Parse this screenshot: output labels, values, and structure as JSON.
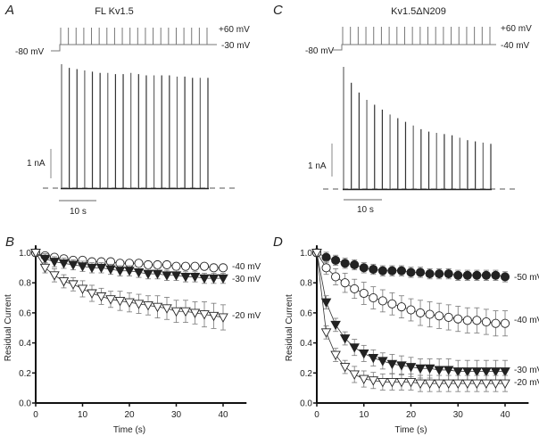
{
  "panels": {
    "A": {
      "letter": "A",
      "title": "FL Kv1.5",
      "v_hold": "-80 mV",
      "v_pulse": "+60 mV",
      "v_inter": "-30 mV",
      "scale_current": "1 nA",
      "scale_time": "10 s",
      "peak_amplitudes_rel": [
        1.0,
        0.97,
        0.96,
        0.95,
        0.94,
        0.93,
        0.93,
        0.92,
        0.92,
        0.93,
        0.92,
        0.91,
        0.91,
        0.91,
        0.91,
        0.9,
        0.9,
        0.89,
        0.89,
        0.89
      ]
    },
    "C": {
      "letter": "C",
      "title": "Kv1.5ΔN209",
      "v_hold": "-80 mV",
      "v_pulse": "+60 mV",
      "v_inter": "-40 mV",
      "scale_current": "1 nA",
      "scale_time": "10 s",
      "peak_amplitudes_rel": [
        1.0,
        0.87,
        0.79,
        0.73,
        0.69,
        0.65,
        0.61,
        0.58,
        0.55,
        0.52,
        0.49,
        0.47,
        0.46,
        0.45,
        0.44,
        0.42,
        0.4,
        0.39,
        0.38,
        0.37
      ]
    },
    "B": {
      "letter": "B"
    },
    "D": {
      "letter": "D"
    }
  },
  "chart_data": [
    {
      "panel": "B",
      "type": "line",
      "xlabel": "Time (s)",
      "ylabel": "Residual Current",
      "xlim": [
        0,
        45
      ],
      "ylim": [
        0,
        1.05
      ],
      "xticks": [
        "0",
        "10",
        "20",
        "30",
        "40"
      ],
      "yticks": [
        "0.0",
        "0.2",
        "0.4",
        "0.6",
        "0.8",
        "1.0"
      ],
      "x": [
        0,
        2,
        4,
        6,
        8,
        10,
        12,
        14,
        16,
        18,
        20,
        22,
        24,
        26,
        28,
        30,
        32,
        34,
        36,
        38,
        40
      ],
      "series": [
        {
          "name": "-40 mV",
          "marker": "open-circle",
          "values": [
            1.0,
            0.98,
            0.97,
            0.96,
            0.95,
            0.95,
            0.94,
            0.94,
            0.94,
            0.93,
            0.93,
            0.93,
            0.92,
            0.92,
            0.92,
            0.91,
            0.91,
            0.91,
            0.91,
            0.9,
            0.9
          ],
          "err": [
            0,
            0.005,
            0.005,
            0.005,
            0.005,
            0.005,
            0.005,
            0.005,
            0.005,
            0.005,
            0.005,
            0.005,
            0.005,
            0.005,
            0.005,
            0.005,
            0.005,
            0.005,
            0.005,
            0.005,
            0.005
          ]
        },
        {
          "name": "-30 mV",
          "marker": "filled-triangle",
          "values": [
            1.0,
            0.96,
            0.94,
            0.93,
            0.92,
            0.91,
            0.9,
            0.9,
            0.89,
            0.88,
            0.88,
            0.87,
            0.86,
            0.86,
            0.85,
            0.85,
            0.84,
            0.84,
            0.83,
            0.83,
            0.83
          ],
          "err": [
            0,
            0.01,
            0.01,
            0.01,
            0.01,
            0.01,
            0.01,
            0.01,
            0.01,
            0.01,
            0.01,
            0.01,
            0.01,
            0.01,
            0.01,
            0.01,
            0.01,
            0.01,
            0.01,
            0.01,
            0.01
          ]
        },
        {
          "name": "-20 mV",
          "marker": "open-triangle",
          "values": [
            1.0,
            0.9,
            0.85,
            0.81,
            0.79,
            0.76,
            0.73,
            0.71,
            0.69,
            0.68,
            0.67,
            0.66,
            0.65,
            0.64,
            0.63,
            0.61,
            0.61,
            0.6,
            0.59,
            0.58,
            0.57
          ],
          "err": [
            0,
            0.01,
            0.02,
            0.02,
            0.02,
            0.03,
            0.03,
            0.03,
            0.03,
            0.04,
            0.04,
            0.04,
            0.04,
            0.05,
            0.05,
            0.05,
            0.05,
            0.05,
            0.06,
            0.06,
            0.06
          ]
        }
      ]
    },
    {
      "panel": "D",
      "type": "line",
      "xlabel": "Time (s)",
      "ylabel": "Residual Current",
      "xlim": [
        0,
        45
      ],
      "ylim": [
        0,
        1.05
      ],
      "xticks": [
        "0",
        "10",
        "20",
        "30",
        "40"
      ],
      "yticks": [
        "0.0",
        "0.2",
        "0.4",
        "0.6",
        "0.8",
        "1.0"
      ],
      "x": [
        0,
        2,
        4,
        6,
        8,
        10,
        12,
        14,
        16,
        18,
        20,
        22,
        24,
        26,
        28,
        30,
        32,
        34,
        36,
        38,
        40
      ],
      "series": [
        {
          "name": "-50 mV",
          "marker": "filled-circle",
          "values": [
            1.0,
            0.97,
            0.95,
            0.93,
            0.92,
            0.9,
            0.89,
            0.88,
            0.88,
            0.88,
            0.87,
            0.87,
            0.86,
            0.86,
            0.86,
            0.85,
            0.85,
            0.85,
            0.85,
            0.85,
            0.84
          ],
          "err": [
            0,
            0.01,
            0.01,
            0.01,
            0.01,
            0.01,
            0.01,
            0.01,
            0.01,
            0.01,
            0.01,
            0.01,
            0.01,
            0.01,
            0.01,
            0.01,
            0.01,
            0.01,
            0.01,
            0.01,
            0.01
          ]
        },
        {
          "name": "-40 mV",
          "marker": "open-circle",
          "values": [
            1.0,
            0.9,
            0.84,
            0.8,
            0.76,
            0.73,
            0.7,
            0.68,
            0.66,
            0.64,
            0.62,
            0.6,
            0.59,
            0.58,
            0.57,
            0.56,
            0.55,
            0.55,
            0.54,
            0.53,
            0.53
          ],
          "err": [
            0,
            0.02,
            0.03,
            0.04,
            0.04,
            0.05,
            0.05,
            0.05,
            0.05,
            0.05,
            0.05,
            0.06,
            0.06,
            0.06,
            0.06,
            0.06,
            0.06,
            0.06,
            0.06,
            0.06,
            0.06
          ]
        },
        {
          "name": "-30 mV",
          "marker": "filled-triangle",
          "values": [
            1.0,
            0.67,
            0.52,
            0.43,
            0.37,
            0.33,
            0.3,
            0.28,
            0.26,
            0.25,
            0.24,
            0.23,
            0.23,
            0.22,
            0.22,
            0.21,
            0.21,
            0.21,
            0.21,
            0.21,
            0.21
          ],
          "err": [
            0,
            0.02,
            0.02,
            0.02,
            0.03,
            0.03,
            0.03,
            0.03,
            0.04,
            0.04,
            0.04,
            0.04,
            0.04,
            0.05,
            0.05,
            0.05,
            0.05,
            0.05,
            0.05,
            0.05,
            0.05
          ]
        },
        {
          "name": "-20 mV",
          "marker": "open-triangle",
          "values": [
            1.0,
            0.47,
            0.32,
            0.24,
            0.19,
            0.16,
            0.15,
            0.14,
            0.14,
            0.14,
            0.14,
            0.13,
            0.13,
            0.13,
            0.13,
            0.13,
            0.13,
            0.13,
            0.13,
            0.13,
            0.13
          ],
          "err": [
            0,
            0.02,
            0.02,
            0.02,
            0.03,
            0.03,
            0.03,
            0.03,
            0.03,
            0.03,
            0.03,
            0.03,
            0.03,
            0.03,
            0.03,
            0.03,
            0.03,
            0.03,
            0.03,
            0.03,
            0.03
          ]
        }
      ]
    }
  ]
}
